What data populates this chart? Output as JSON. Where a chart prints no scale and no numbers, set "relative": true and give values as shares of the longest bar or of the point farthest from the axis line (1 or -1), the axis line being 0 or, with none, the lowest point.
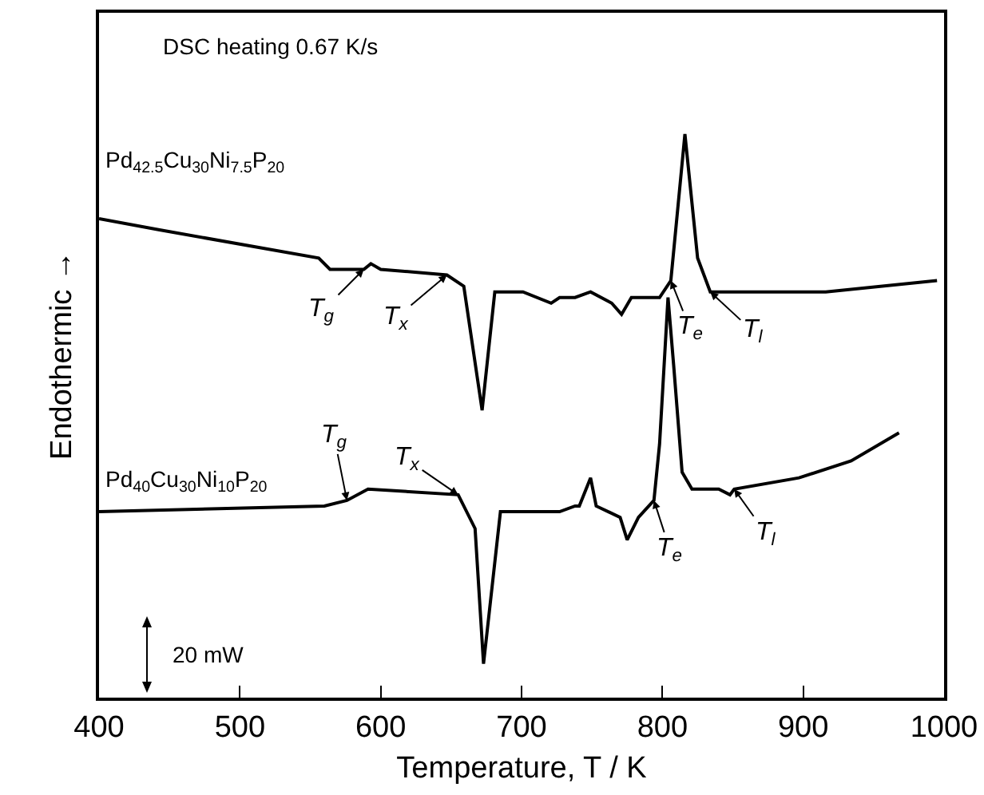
{
  "chart_data": {
    "type": "line",
    "relative": true,
    "xlabel": "Temperature, T / K",
    "ylabel": "Endothermic →",
    "xlim": [
      400,
      1000
    ],
    "xticks": [
      400,
      500,
      600,
      700,
      800,
      900,
      1000
    ],
    "grid": false,
    "legend": false,
    "marker": "none",
    "line_style": "solid",
    "series": [
      {
        "name": "Pd$_{42.5}$Cu$_{30}$Ni$_{7.5}$P$_{20}$",
        "color": "#000000",
        "x": [
          400,
          443,
          556,
          564,
          588,
          593,
          600,
          647,
          659,
          672,
          681,
          701,
          721,
          727,
          738,
          749,
          764,
          771,
          778,
          798,
          806,
          816,
          825,
          834,
          840,
          916,
          995
        ],
        "values": [
          0.85,
          0.83,
          0.78,
          0.76,
          0.76,
          0.77,
          0.76,
          0.75,
          0.73,
          0.51,
          0.72,
          0.72,
          0.7,
          0.71,
          0.71,
          0.72,
          0.7,
          0.68,
          0.71,
          0.71,
          0.74,
          1.0,
          0.78,
          0.72,
          0.72,
          0.72,
          0.74
        ]
      },
      {
        "name": "Pd$_{40}$Cu$_{30}$Ni$_{10}$P$_{20}$",
        "color": "#000000",
        "x": [
          400,
          560,
          576,
          591,
          655,
          667,
          673,
          685,
          727,
          738,
          741,
          749,
          753,
          770,
          775,
          783,
          794,
          798,
          804,
          808,
          814,
          821,
          840,
          848,
          851,
          897,
          934,
          968
        ],
        "values": [
          0.33,
          0.34,
          0.35,
          0.37,
          0.36,
          0.3,
          0.06,
          0.33,
          0.33,
          0.34,
          0.34,
          0.39,
          0.34,
          0.32,
          0.28,
          0.32,
          0.35,
          0.45,
          0.71,
          0.59,
          0.4,
          0.37,
          0.37,
          0.36,
          0.37,
          0.39,
          0.42,
          0.47
        ]
      }
    ],
    "annotations": [
      "DSC heating 0.67 K/s",
      "20 mW",
      {
        "text": "T$_{g}$",
        "x": 588,
        "y": 0.76
      },
      {
        "text": "T$_{x}$",
        "x": 647,
        "y": 0.75
      },
      {
        "text": "T$_{e}$",
        "x": 806,
        "y": 0.74
      },
      {
        "text": "T$_{l}$",
        "x": 834,
        "y": 0.72
      },
      {
        "text": "T$_{g}$",
        "x": 576,
        "y": 0.35
      },
      {
        "text": "T$_{x}$",
        "x": 655,
        "y": 0.36
      },
      {
        "text": "T$_{e}$",
        "x": 794,
        "y": 0.35
      },
      {
        "text": "T$_{l}$",
        "x": 851,
        "y": 0.37
      }
    ]
  }
}
